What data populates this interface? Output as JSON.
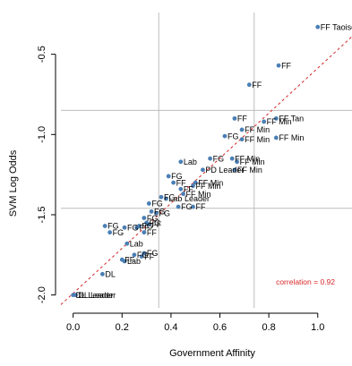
{
  "chart_data": {
    "type": "scatter",
    "title": "",
    "xlabel": "Government Affinity",
    "ylabel": "SVM Log Odds",
    "xlim": [
      -0.05,
      1.14
    ],
    "ylim": [
      -2.08,
      -0.24
    ],
    "xticks": [
      0.0,
      0.2,
      0.4,
      0.6,
      0.8,
      1.0
    ],
    "xtick_labels": [
      "0.0",
      "0.2",
      "0.4",
      "0.6",
      "0.8",
      "1.0"
    ],
    "yticks": [
      -2.0,
      -1.5,
      -1.0,
      -0.5
    ],
    "ytick_labels": [
      "-2.0",
      "-1.5",
      "-1.0",
      "-0.5"
    ],
    "reference_lines": {
      "vertical": [
        0.35,
        0.74
      ],
      "horizontal": [
        -0.85,
        -1.46
      ]
    },
    "fit_line": {
      "x": [
        -0.05,
        1.14
      ],
      "y": [
        -2.06,
        -0.39
      ]
    },
    "annotation": "correlation = 0.92",
    "points": [
      {
        "x": 1.0,
        "y": -0.33,
        "label": "FF Taoiseach"
      },
      {
        "x": 0.84,
        "y": -0.57,
        "label": "FF"
      },
      {
        "x": 0.72,
        "y": -0.69,
        "label": "FF"
      },
      {
        "x": 0.66,
        "y": -0.9,
        "label": "FF"
      },
      {
        "x": 0.83,
        "y": -0.9,
        "label": "FF Tan"
      },
      {
        "x": 0.78,
        "y": -0.92,
        "label": "FF Min"
      },
      {
        "x": 0.69,
        "y": -0.97,
        "label": "FF Min"
      },
      {
        "x": 0.62,
        "y": -1.01,
        "label": "FG"
      },
      {
        "x": 0.83,
        "y": -1.02,
        "label": "FF Min"
      },
      {
        "x": 0.69,
        "y": -1.03,
        "label": "FF Min"
      },
      {
        "x": 0.56,
        "y": -1.15,
        "label": "FG"
      },
      {
        "x": 0.65,
        "y": -1.15,
        "label": "FF Min"
      },
      {
        "x": 0.67,
        "y": -1.17,
        "label": "FF Min"
      },
      {
        "x": 0.44,
        "y": -1.17,
        "label": "Lab"
      },
      {
        "x": 0.53,
        "y": -1.22,
        "label": "PD Leader"
      },
      {
        "x": 0.66,
        "y": -1.22,
        "label": "FF Min"
      },
      {
        "x": 0.39,
        "y": -1.26,
        "label": "FG"
      },
      {
        "x": 0.5,
        "y": -1.3,
        "label": "FF Min"
      },
      {
        "x": 0.41,
        "y": -1.3,
        "label": "FF"
      },
      {
        "x": 0.49,
        "y": -1.32,
        "label": "FF Min"
      },
      {
        "x": 0.44,
        "y": -1.34,
        "label": "FF"
      },
      {
        "x": 0.45,
        "y": -1.37,
        "label": "FF Min"
      },
      {
        "x": 0.36,
        "y": -1.39,
        "label": "FG"
      },
      {
        "x": 0.38,
        "y": -1.4,
        "label": "Lab Leader"
      },
      {
        "x": 0.31,
        "y": -1.43,
        "label": "FG"
      },
      {
        "x": 0.43,
        "y": -1.45,
        "label": "FG"
      },
      {
        "x": 0.49,
        "y": -1.45,
        "label": "FF"
      },
      {
        "x": 0.32,
        "y": -1.48,
        "label": "FG"
      },
      {
        "x": 0.34,
        "y": -1.49,
        "label": "FG"
      },
      {
        "x": 0.29,
        "y": -1.52,
        "label": "FG"
      },
      {
        "x": 0.3,
        "y": -1.55,
        "label": "FG"
      },
      {
        "x": 0.31,
        "y": -1.56,
        "label": "FF"
      },
      {
        "x": 0.27,
        "y": -1.57,
        "label": "FG"
      },
      {
        "x": 0.13,
        "y": -1.57,
        "label": "FG"
      },
      {
        "x": 0.21,
        "y": -1.58,
        "label": "FG"
      },
      {
        "x": 0.26,
        "y": -1.58,
        "label": "FF"
      },
      {
        "x": 0.15,
        "y": -1.61,
        "label": "FG"
      },
      {
        "x": 0.29,
        "y": -1.61,
        "label": "FF"
      },
      {
        "x": 0.22,
        "y": -1.68,
        "label": "Lab"
      },
      {
        "x": 0.29,
        "y": -1.74,
        "label": "FG"
      },
      {
        "x": 0.28,
        "y": -1.76,
        "label": "FF"
      },
      {
        "x": 0.25,
        "y": -1.75,
        "label": "FG"
      },
      {
        "x": 0.2,
        "y": -1.78,
        "label": "FF"
      },
      {
        "x": 0.21,
        "y": -1.79,
        "label": "Lab"
      },
      {
        "x": 0.12,
        "y": -1.87,
        "label": "DL"
      },
      {
        "x": 0.0,
        "y": -2.0,
        "label": "DL Leader"
      },
      {
        "x": 0.01,
        "y": -2.0,
        "label": "DL Leader"
      }
    ]
  }
}
